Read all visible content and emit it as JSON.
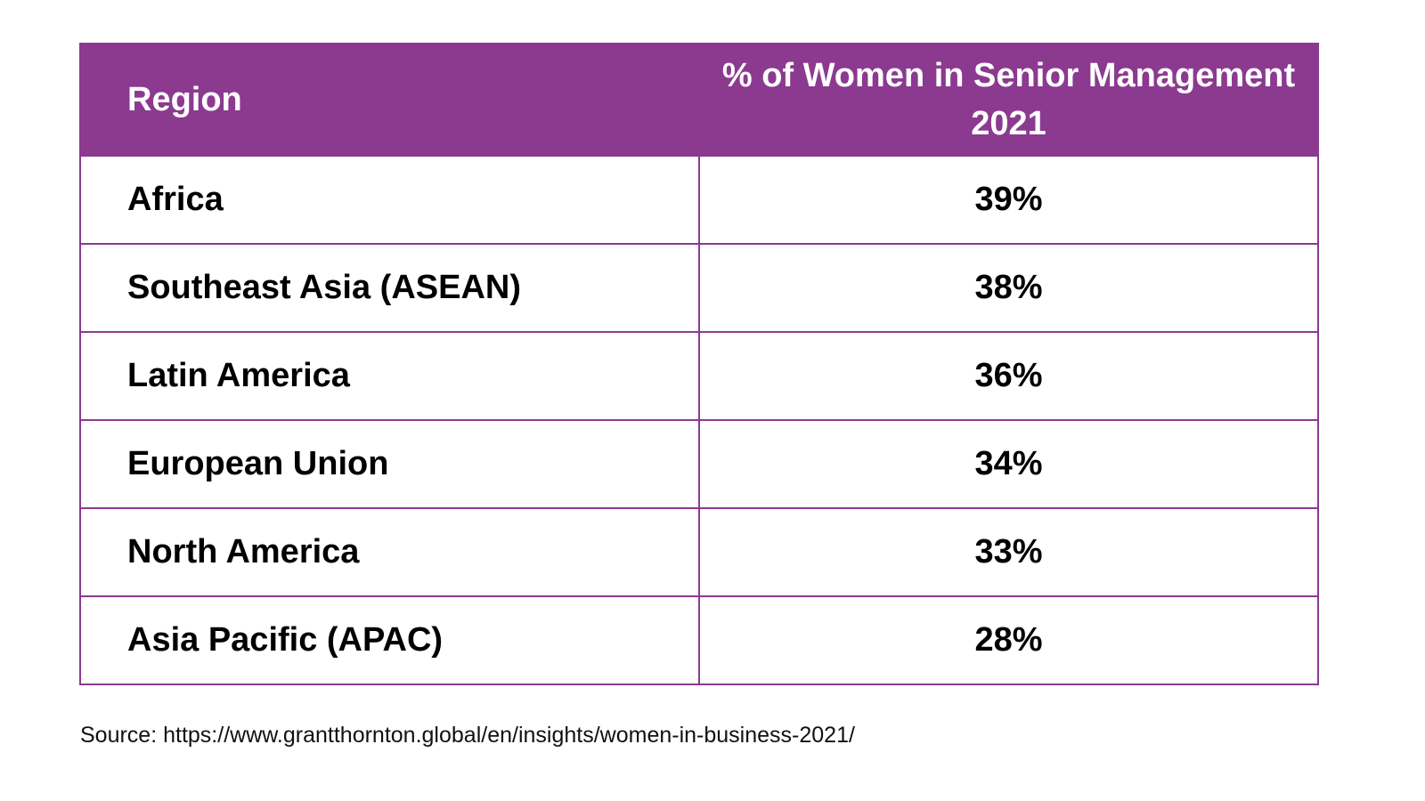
{
  "table": {
    "headers": {
      "region": "Region",
      "value": "% of Women in Senior Management 2021"
    },
    "rows": [
      {
        "region": "Africa",
        "value": "39%"
      },
      {
        "region": "Southeast Asia (ASEAN)",
        "value": "38%"
      },
      {
        "region": "Latin America",
        "value": "36%"
      },
      {
        "region": "European Union",
        "value": "34%"
      },
      {
        "region": "North America",
        "value": "33%"
      },
      {
        "region": "Asia Pacific (APAC)",
        "value": "28%"
      }
    ]
  },
  "source": "Source: https://www.grantthornton.global/en/insights/women-in-business-2021/",
  "colors": {
    "header_bg": "#8b3a90",
    "header_text": "#ffffff",
    "border": "#8b3a90",
    "body_text": "#000000"
  },
  "chart_data": {
    "type": "table",
    "title": "% of Women in Senior Management 2021",
    "columns": [
      "Region",
      "% of Women in Senior Management 2021"
    ],
    "categories": [
      "Africa",
      "Southeast Asia (ASEAN)",
      "Latin America",
      "European Union",
      "North America",
      "Asia Pacific (APAC)"
    ],
    "values": [
      39,
      38,
      36,
      34,
      33,
      28
    ],
    "unit": "%",
    "source": "https://www.grantthornton.global/en/insights/women-in-business-2021/"
  }
}
